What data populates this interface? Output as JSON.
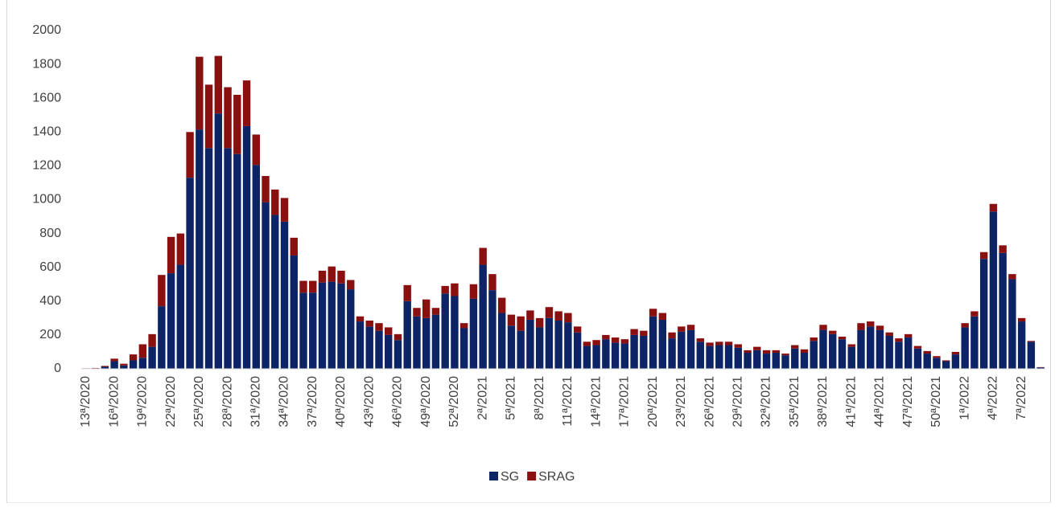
{
  "chart_data": {
    "type": "stacked_bar",
    "categories": [
      "13ª/2020",
      null,
      null,
      "16ª/2020",
      null,
      null,
      "19ª/2020",
      null,
      null,
      "22ª/2020",
      null,
      null,
      "25ª/2020",
      null,
      null,
      "28ª/2020",
      null,
      null,
      "31ª/2020",
      null,
      null,
      "34ª/2020",
      null,
      null,
      "37ª/2020",
      null,
      null,
      "40ª/2020",
      null,
      null,
      "43ª/2020",
      null,
      null,
      "46ª/2020",
      null,
      null,
      "49ª/2020",
      null,
      null,
      "52ª/2020",
      null,
      null,
      "2ª/2021",
      null,
      null,
      "5ª/2021",
      null,
      null,
      "8ª/2021",
      null,
      null,
      "11ª/2021",
      null,
      null,
      "14ª/2021",
      null,
      null,
      "17ª/2021",
      null,
      null,
      "20ª/2021",
      null,
      null,
      "23ª/2021",
      null,
      null,
      "26ª/2021",
      null,
      null,
      "29ª/2021",
      null,
      null,
      "32ª/2021",
      null,
      null,
      "35ª/2021",
      null,
      null,
      "38ª/2021",
      null,
      null,
      "41ª/2021",
      null,
      null,
      "44ª/2021",
      null,
      null,
      "47ª/2021",
      null,
      null,
      "50ª/2021",
      null,
      null,
      "1ª/2022",
      null,
      null,
      "4ª/2022",
      null,
      null,
      "7ª/2022",
      null,
      null
    ],
    "series": [
      {
        "name": "SG",
        "color": "#0c2466",
        "values": [
          2,
          3,
          12,
          45,
          20,
          50,
          65,
          130,
          370,
          565,
          615,
          1130,
          1415,
          1305,
          1510,
          1305,
          1270,
          1435,
          1205,
          985,
          910,
          870,
          670,
          450,
          450,
          510,
          515,
          505,
          470,
          280,
          250,
          225,
          200,
          170,
          400,
          310,
          300,
          320,
          445,
          430,
          240,
          415,
          615,
          465,
          330,
          255,
          225,
          290,
          245,
          300,
          285,
          275,
          215,
          135,
          140,
          175,
          155,
          150,
          200,
          195,
          310,
          290,
          180,
          220,
          230,
          160,
          135,
          140,
          140,
          125,
          95,
          110,
          90,
          95,
          80,
          120,
          95,
          165,
          230,
          205,
          175,
          130,
          230,
          250,
          230,
          195,
          160,
          185,
          120,
          90,
          65,
          45,
          85,
          245,
          310,
          650,
          930,
          685,
          530,
          280,
          160,
          8
        ]
      },
      {
        "name": "SRAG",
        "color": "#8a0f0f",
        "values": [
          1,
          2,
          5,
          15,
          10,
          35,
          80,
          75,
          185,
          215,
          185,
          270,
          430,
          375,
          340,
          360,
          350,
          270,
          180,
          155,
          150,
          140,
          105,
          70,
          70,
          70,
          90,
          75,
          55,
          30,
          35,
          45,
          45,
          35,
          95,
          50,
          110,
          40,
          45,
          75,
          30,
          85,
          100,
          95,
          90,
          65,
          85,
          55,
          55,
          65,
          55,
          55,
          35,
          25,
          30,
          25,
          30,
          25,
          35,
          30,
          45,
          40,
          35,
          30,
          30,
          20,
          20,
          20,
          20,
          20,
          15,
          20,
          20,
          15,
          10,
          20,
          20,
          20,
          30,
          20,
          15,
          15,
          40,
          30,
          25,
          20,
          20,
          20,
          15,
          15,
          10,
          5,
          15,
          25,
          30,
          40,
          45,
          45,
          30,
          20,
          5,
          2
        ]
      }
    ],
    "ylim": [
      0,
      2000
    ],
    "yticks": [
      0,
      200,
      400,
      600,
      800,
      1000,
      1200,
      1400,
      1600,
      1800,
      2000
    ],
    "grid": false,
    "legend": "bottom"
  }
}
